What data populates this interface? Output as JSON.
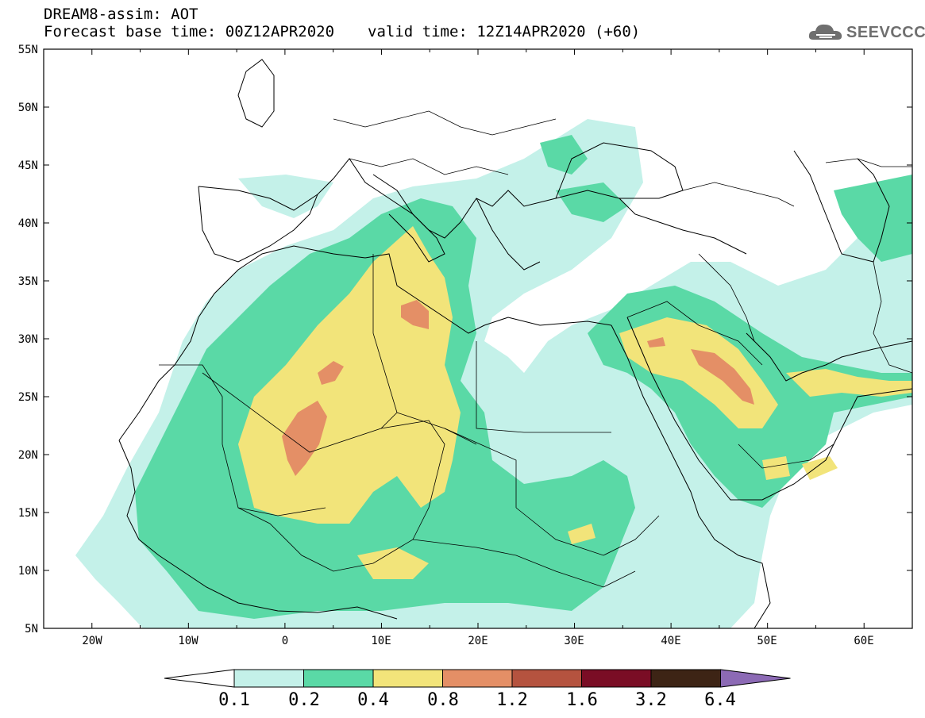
{
  "header": {
    "title": "DREAM8-assim: AOT",
    "base_time": "Forecast base time: 00Z12APR2020",
    "valid_time": "valid time: 12Z14APR2020 (+60)"
  },
  "logo": {
    "text": "SEEVCCC"
  },
  "map": {
    "lat_labels": [
      "55N",
      "50N",
      "45N",
      "40N",
      "35N",
      "30N",
      "25N",
      "20N",
      "15N",
      "10N",
      "5N"
    ],
    "lon_labels": [
      "20W",
      "10W",
      "0",
      "10E",
      "20E",
      "30E",
      "40E",
      "50E",
      "60E"
    ],
    "extent": {
      "lon": [
        -25,
        65
      ],
      "lat": [
        5,
        55
      ]
    }
  },
  "colorbar": {
    "labels": [
      "0.1",
      "0.2",
      "0.4",
      "0.8",
      "1.2",
      "1.6",
      "3.2",
      "6.4"
    ],
    "colors": [
      "#ffffff",
      "#c4f1e9",
      "#5ad9a6",
      "#f2e47a",
      "#e48f66",
      "#b5533f",
      "#7a0d25",
      "#3d2415",
      "#8c6ab5"
    ]
  }
}
